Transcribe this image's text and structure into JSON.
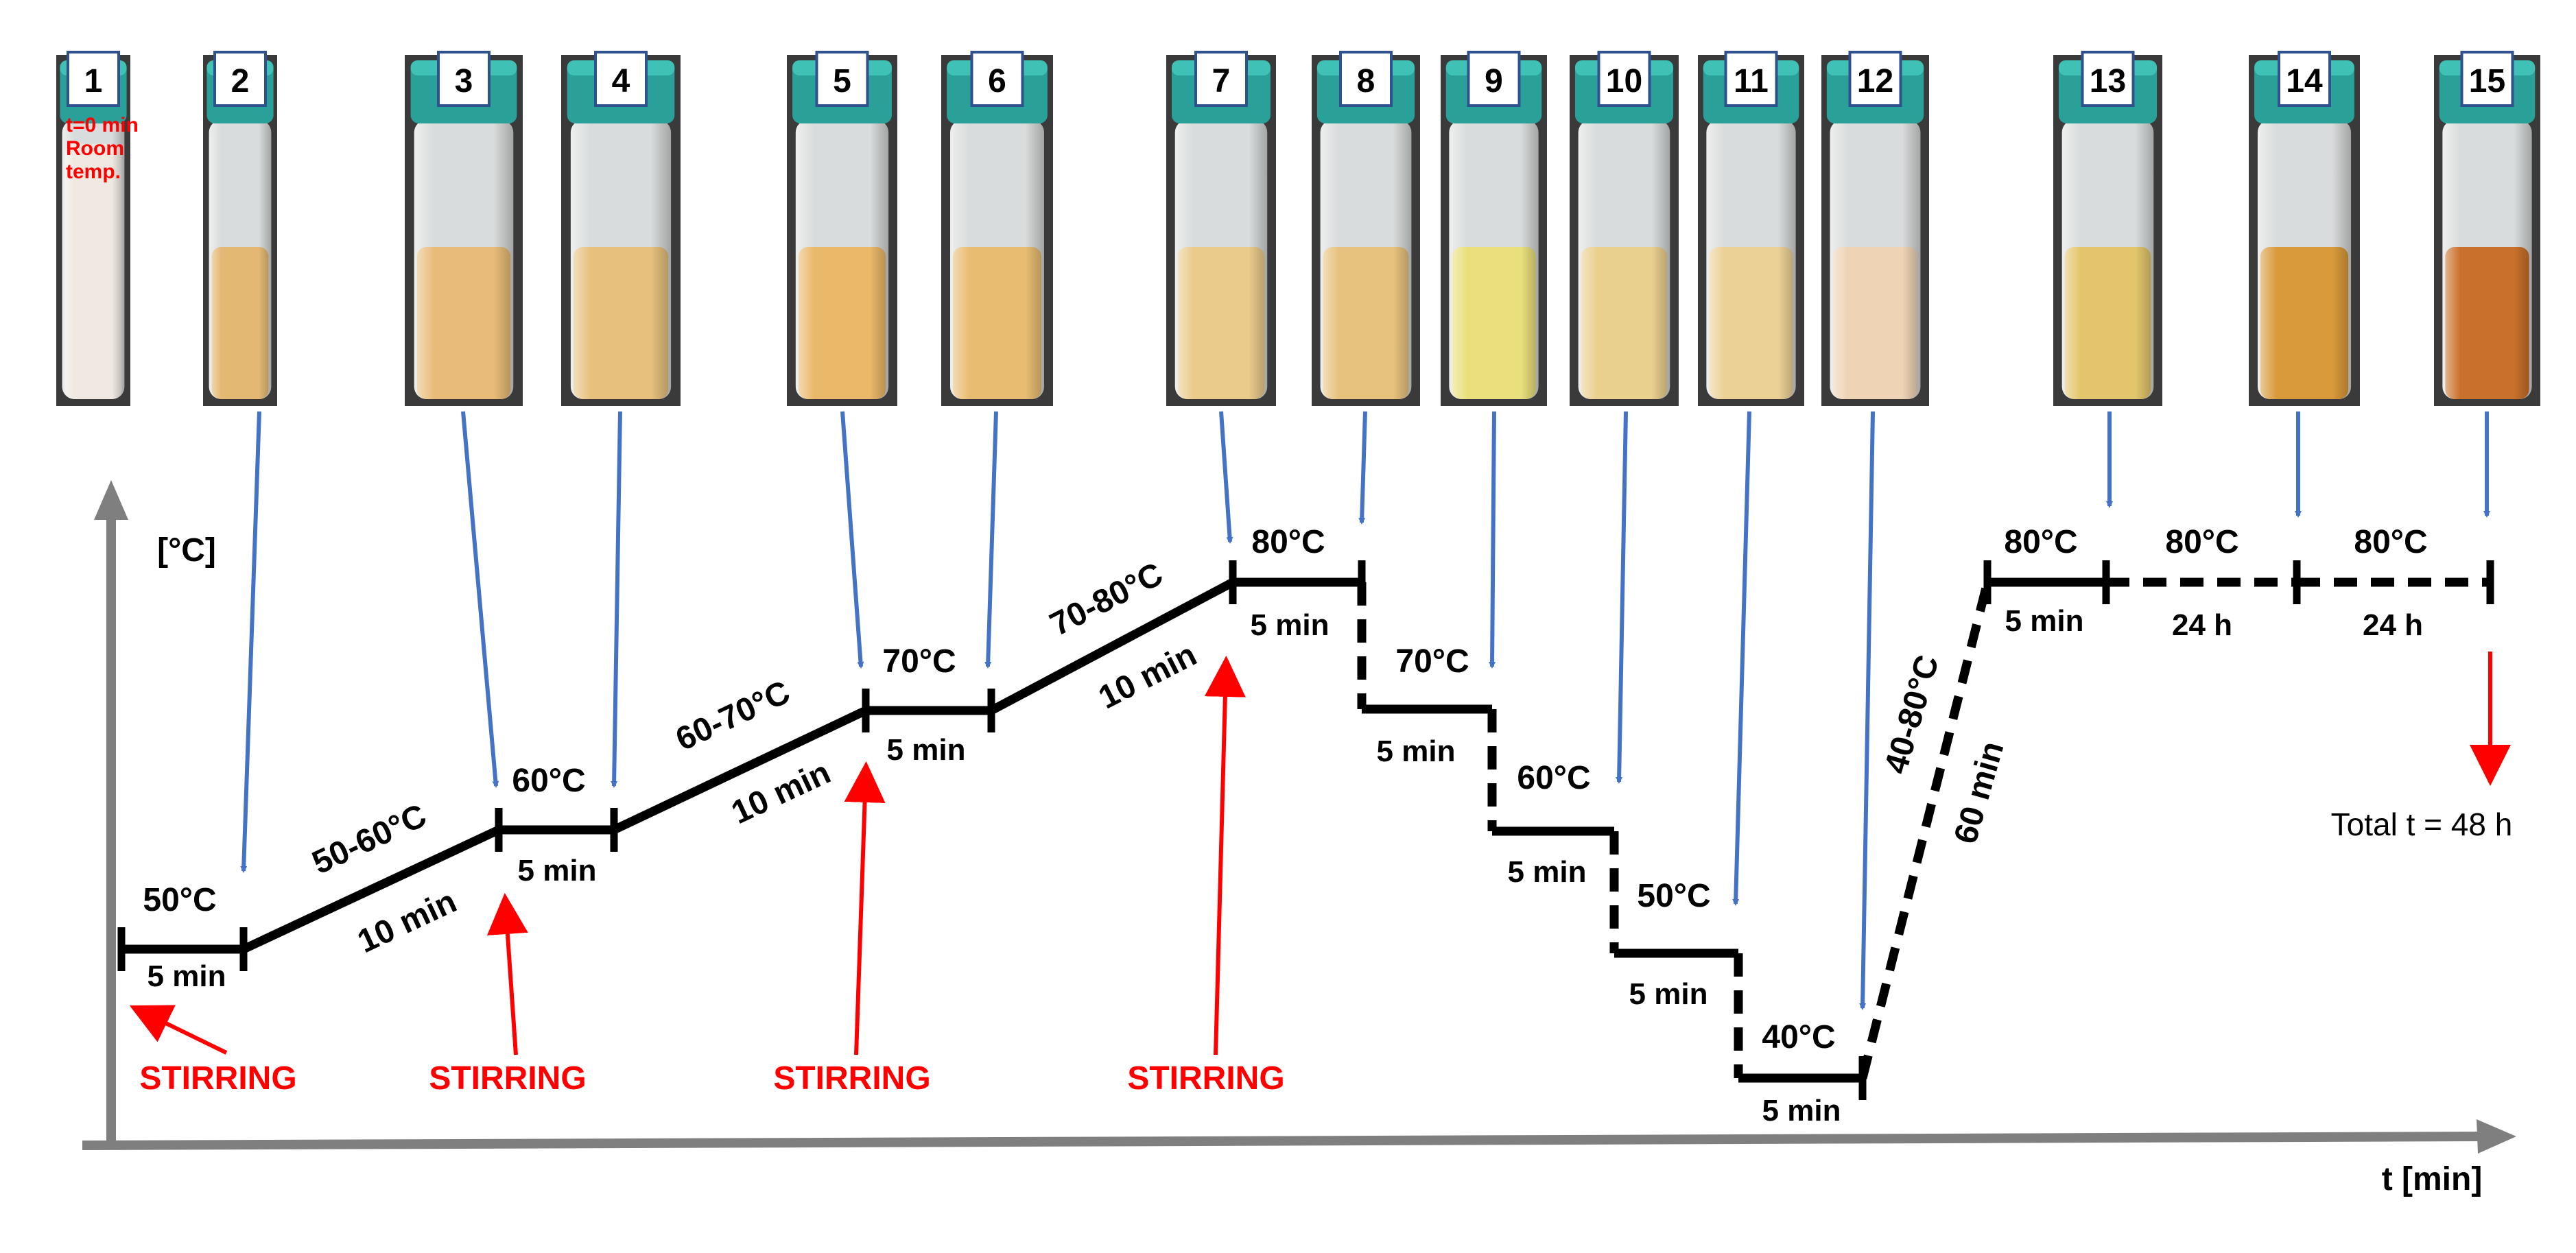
{
  "axes": {
    "y_label": "[°C]",
    "x_label": "t [min]"
  },
  "vials": [
    {
      "number": "1",
      "tint": "#efe9e2",
      "note_lines": [
        "t=0 min",
        "Room",
        "temp."
      ]
    },
    {
      "number": "2",
      "tint": "#e3b873"
    },
    {
      "number": "3",
      "tint": "#e8bc78"
    },
    {
      "number": "4",
      "tint": "#e7c07e"
    },
    {
      "number": "5",
      "tint": "#eab869"
    },
    {
      "number": "6",
      "tint": "#e8bd72"
    },
    {
      "number": "7",
      "tint": "#ebcb8c"
    },
    {
      "number": "8",
      "tint": "#e7c27d"
    },
    {
      "number": "9",
      "tint": "#e9e07d"
    },
    {
      "number": "10",
      "tint": "#ead08f"
    },
    {
      "number": "11",
      "tint": "#ecd196"
    },
    {
      "number": "12",
      "tint": "#eed3b5"
    },
    {
      "number": "13",
      "tint": "#e3c66c"
    },
    {
      "number": "14",
      "tint": "#d99a3a"
    },
    {
      "number": "15",
      "tint": "#c9702a"
    }
  ],
  "steps": [
    {
      "temp": "50°C",
      "duration": "5 min"
    },
    {
      "temp": "50-60°C",
      "duration": "10 min"
    },
    {
      "temp": "60°C",
      "duration": "5 min"
    },
    {
      "temp": "60-70°C",
      "duration": "10 min"
    },
    {
      "temp": "70°C",
      "duration": "5 min"
    },
    {
      "temp": "70-80°C",
      "duration": "10 min"
    },
    {
      "temp": "80°C",
      "duration": "5 min"
    },
    {
      "temp": "70°C",
      "duration": "5 min"
    },
    {
      "temp": "60°C",
      "duration": "5 min"
    },
    {
      "temp": "50°C",
      "duration": "5 min"
    },
    {
      "temp": "40°C",
      "duration": "5 min"
    },
    {
      "temp": "40-80°C",
      "duration": "60 min"
    },
    {
      "temp": "80°C",
      "duration": "5 min"
    },
    {
      "temp": "80°C",
      "duration": "24 h"
    },
    {
      "temp": "80°C",
      "duration": "24 h"
    }
  ],
  "stirring_label": "STIRRING",
  "total_label": "Total t = 48 h",
  "colors": {
    "profile": "#000000",
    "axis": "#7f7f7f",
    "vial_arrow": "#4472c4",
    "stirring": "#ff0000",
    "cap": "#2aa198"
  }
}
